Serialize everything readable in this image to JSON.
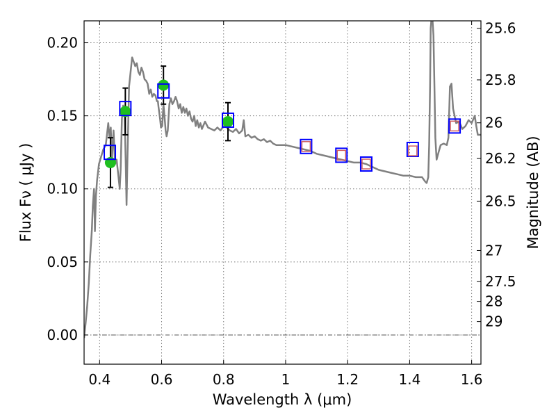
{
  "chart_data": {
    "type": "scatter",
    "xlabel": "Wavelength  λ (μm)",
    "ylabel_left": "Flux  Fν ( μJy )",
    "ylabel_right": "Magnitude (AB)",
    "xlim": [
      0.35,
      1.63
    ],
    "ylim": [
      -0.02,
      0.215
    ],
    "grid": true,
    "x_ticks": [
      {
        "value": 0.4,
        "label": "0.4"
      },
      {
        "value": 0.6,
        "label": "0.6"
      },
      {
        "value": 0.8,
        "label": "0.8"
      },
      {
        "value": 1.0,
        "label": "1"
      },
      {
        "value": 1.2,
        "label": "1.2"
      },
      {
        "value": 1.4,
        "label": "1.4"
      },
      {
        "value": 1.6,
        "label": "1.6"
      }
    ],
    "y_ticks": [
      {
        "value": 0.0,
        "label": "0.00"
      },
      {
        "value": 0.05,
        "label": "0.05"
      },
      {
        "value": 0.1,
        "label": "0.10"
      },
      {
        "value": 0.15,
        "label": "0.15"
      },
      {
        "value": 0.2,
        "label": "0.20"
      }
    ],
    "right_ticks": [
      {
        "label": "25.6",
        "flux": 0.2099
      },
      {
        "label": "25.8",
        "flux": 0.1746
      },
      {
        "label": "26",
        "flux": 0.1452
      },
      {
        "label": "26.2",
        "flux": 0.1208
      },
      {
        "label": "26.5",
        "flux": 0.0916
      },
      {
        "label": "27",
        "flux": 0.0578
      },
      {
        "label": "27.5",
        "flux": 0.0365
      },
      {
        "label": "28",
        "flux": 0.023
      },
      {
        "label": "29",
        "flux": 0.0092
      }
    ],
    "series": [
      {
        "name": "model-spectrum",
        "kind": "line",
        "color": "#808080",
        "points": [
          [
            0.35,
            -0.002
          ],
          [
            0.355,
            0.008
          ],
          [
            0.36,
            0.02
          ],
          [
            0.365,
            0.035
          ],
          [
            0.37,
            0.055
          ],
          [
            0.375,
            0.072
          ],
          [
            0.378,
            0.088
          ],
          [
            0.382,
            0.1
          ],
          [
            0.385,
            0.071
          ],
          [
            0.388,
            0.095
          ],
          [
            0.392,
            0.106
          ],
          [
            0.398,
            0.117
          ],
          [
            0.405,
            0.122
          ],
          [
            0.412,
            0.127
          ],
          [
            0.42,
            0.13
          ],
          [
            0.428,
            0.145
          ],
          [
            0.432,
            0.135
          ],
          [
            0.436,
            0.142
          ],
          [
            0.44,
            0.12
          ],
          [
            0.445,
            0.14
          ],
          [
            0.45,
            0.117
          ],
          [
            0.455,
            0.12
          ],
          [
            0.46,
            0.11
          ],
          [
            0.465,
            0.1
          ],
          [
            0.468,
            0.113
          ],
          [
            0.472,
            0.148
          ],
          [
            0.476,
            0.157
          ],
          [
            0.48,
            0.155
          ],
          [
            0.484,
            0.12
          ],
          [
            0.487,
            0.089
          ],
          [
            0.49,
            0.123
          ],
          [
            0.495,
            0.17
          ],
          [
            0.5,
            0.18
          ],
          [
            0.505,
            0.19
          ],
          [
            0.51,
            0.187
          ],
          [
            0.515,
            0.184
          ],
          [
            0.52,
            0.186
          ],
          [
            0.525,
            0.18
          ],
          [
            0.53,
            0.178
          ],
          [
            0.535,
            0.183
          ],
          [
            0.54,
            0.18
          ],
          [
            0.545,
            0.175
          ],
          [
            0.55,
            0.174
          ],
          [
            0.555,
            0.172
          ],
          [
            0.56,
            0.165
          ],
          [
            0.565,
            0.168
          ],
          [
            0.57,
            0.163
          ],
          [
            0.575,
            0.165
          ],
          [
            0.58,
            0.164
          ],
          [
            0.585,
            0.16
          ],
          [
            0.588,
            0.16
          ],
          [
            0.59,
            0.156
          ],
          [
            0.595,
            0.148
          ],
          [
            0.598,
            0.142
          ],
          [
            0.602,
            0.143
          ],
          [
            0.606,
            0.158
          ],
          [
            0.61,
            0.148
          ],
          [
            0.613,
            0.14
          ],
          [
            0.616,
            0.136
          ],
          [
            0.62,
            0.14
          ],
          [
            0.625,
            0.158
          ],
          [
            0.63,
            0.162
          ],
          [
            0.635,
            0.158
          ],
          [
            0.64,
            0.16
          ],
          [
            0.645,
            0.163
          ],
          [
            0.65,
            0.16
          ],
          [
            0.655,
            0.155
          ],
          [
            0.66,
            0.158
          ],
          [
            0.665,
            0.152
          ],
          [
            0.67,
            0.156
          ],
          [
            0.675,
            0.152
          ],
          [
            0.68,
            0.155
          ],
          [
            0.685,
            0.15
          ],
          [
            0.69,
            0.153
          ],
          [
            0.695,
            0.148
          ],
          [
            0.7,
            0.146
          ],
          [
            0.705,
            0.15
          ],
          [
            0.71,
            0.143
          ],
          [
            0.715,
            0.147
          ],
          [
            0.72,
            0.142
          ],
          [
            0.725,
            0.145
          ],
          [
            0.73,
            0.141
          ],
          [
            0.74,
            0.146
          ],
          [
            0.75,
            0.142
          ],
          [
            0.76,
            0.141
          ],
          [
            0.77,
            0.14
          ],
          [
            0.78,
            0.142
          ],
          [
            0.79,
            0.14
          ],
          [
            0.8,
            0.143
          ],
          [
            0.81,
            0.142
          ],
          [
            0.82,
            0.14
          ],
          [
            0.83,
            0.139
          ],
          [
            0.84,
            0.141
          ],
          [
            0.85,
            0.138
          ],
          [
            0.86,
            0.14
          ],
          [
            0.865,
            0.147
          ],
          [
            0.87,
            0.136
          ],
          [
            0.88,
            0.137
          ],
          [
            0.89,
            0.135
          ],
          [
            0.9,
            0.136
          ],
          [
            0.91,
            0.134
          ],
          [
            0.92,
            0.133
          ],
          [
            0.93,
            0.134
          ],
          [
            0.94,
            0.132
          ],
          [
            0.95,
            0.133
          ],
          [
            0.96,
            0.131
          ],
          [
            0.97,
            0.13
          ],
          [
            0.98,
            0.13
          ],
          [
            1.0,
            0.13
          ],
          [
            1.02,
            0.129
          ],
          [
            1.04,
            0.128
          ],
          [
            1.06,
            0.127
          ],
          [
            1.08,
            0.126
          ],
          [
            1.1,
            0.124
          ],
          [
            1.12,
            0.123
          ],
          [
            1.14,
            0.122
          ],
          [
            1.16,
            0.121
          ],
          [
            1.18,
            0.12
          ],
          [
            1.2,
            0.119
          ],
          [
            1.22,
            0.118
          ],
          [
            1.24,
            0.118
          ],
          [
            1.26,
            0.117
          ],
          [
            1.28,
            0.115
          ],
          [
            1.3,
            0.113
          ],
          [
            1.32,
            0.112
          ],
          [
            1.34,
            0.111
          ],
          [
            1.36,
            0.11
          ],
          [
            1.38,
            0.109
          ],
          [
            1.4,
            0.109
          ],
          [
            1.42,
            0.108
          ],
          [
            1.44,
            0.108
          ],
          [
            1.45,
            0.105
          ],
          [
            1.455,
            0.104
          ],
          [
            1.46,
            0.108
          ],
          [
            1.463,
            0.13
          ],
          [
            1.466,
            0.17
          ],
          [
            1.468,
            0.21
          ],
          [
            1.47,
            0.215
          ],
          [
            1.474,
            0.215
          ],
          [
            1.477,
            0.205
          ],
          [
            1.48,
            0.17
          ],
          [
            1.483,
            0.135
          ],
          [
            1.487,
            0.12
          ],
          [
            1.492,
            0.124
          ],
          [
            1.5,
            0.13
          ],
          [
            1.51,
            0.131
          ],
          [
            1.52,
            0.13
          ],
          [
            1.525,
            0.135
          ],
          [
            1.53,
            0.17
          ],
          [
            1.535,
            0.172
          ],
          [
            1.54,
            0.155
          ],
          [
            1.55,
            0.145
          ],
          [
            1.56,
            0.146
          ],
          [
            1.57,
            0.141
          ],
          [
            1.58,
            0.143
          ],
          [
            1.59,
            0.147
          ],
          [
            1.6,
            0.145
          ],
          [
            1.61,
            0.15
          ],
          [
            1.615,
            0.143
          ],
          [
            1.62,
            0.137
          ],
          [
            1.63,
            0.137
          ]
        ]
      },
      {
        "name": "observed-photometry",
        "kind": "points-with-errorbars",
        "color": "#1fbf1f",
        "points": [
          {
            "x": 0.435,
            "y": 0.118,
            "yerr": 0.017
          },
          {
            "x": 0.483,
            "y": 0.153,
            "yerr": 0.016
          },
          {
            "x": 0.606,
            "y": 0.171,
            "yerr": 0.013
          },
          {
            "x": 0.814,
            "y": 0.146,
            "yerr": 0.013
          }
        ]
      },
      {
        "name": "model-bandpass-flux",
        "kind": "squares",
        "color": "#0000ff",
        "points": [
          {
            "x": 0.433,
            "y": 0.125
          },
          {
            "x": 0.483,
            "y": 0.155
          },
          {
            "x": 0.606,
            "y": 0.167
          },
          {
            "x": 0.814,
            "y": 0.147
          },
          {
            "x": 1.066,
            "y": 0.129
          },
          {
            "x": 1.18,
            "y": 0.123
          },
          {
            "x": 1.26,
            "y": 0.117
          },
          {
            "x": 1.41,
            "y": 0.127
          },
          {
            "x": 1.545,
            "y": 0.143
          }
        ]
      },
      {
        "name": "nir-model-flux",
        "kind": "small-squares",
        "color": "#d06060",
        "points": [
          {
            "x": 1.066,
            "y": 0.129
          },
          {
            "x": 1.18,
            "y": 0.123
          },
          {
            "x": 1.26,
            "y": 0.117
          },
          {
            "x": 1.41,
            "y": 0.126
          },
          {
            "x": 1.545,
            "y": 0.143
          }
        ]
      }
    ]
  }
}
